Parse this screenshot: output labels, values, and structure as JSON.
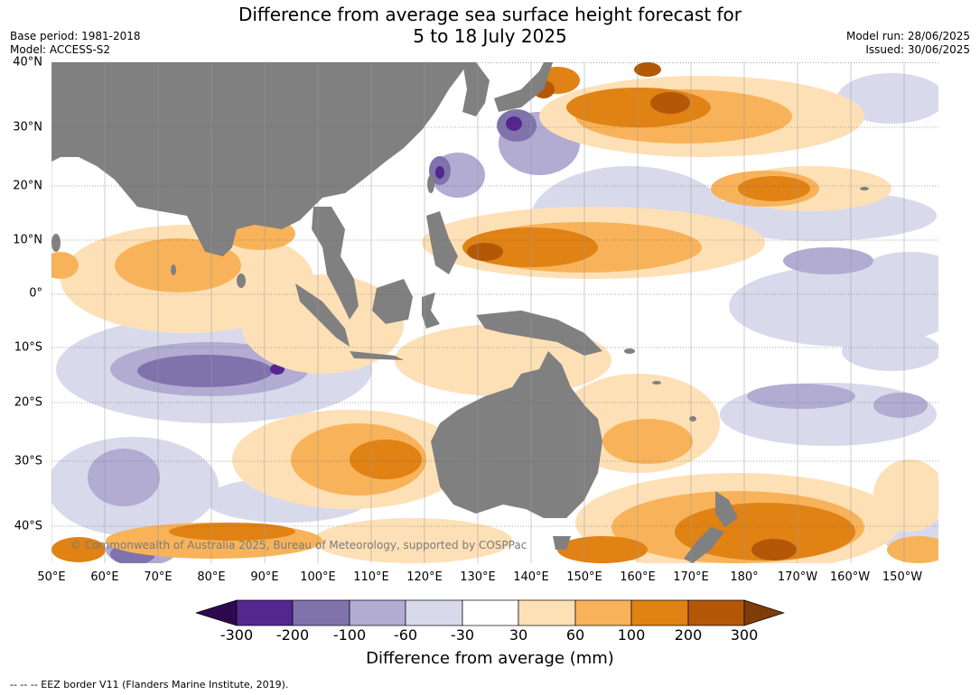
{
  "title": {
    "line1": "Difference from average sea surface height forecast for",
    "line2": "5 to 18 July 2025"
  },
  "meta": {
    "base_period": "Base period: 1981-2018",
    "model": "Model: ACCESS-S2",
    "model_run": "Model run: 28/06/2025",
    "issued": "Issued: 30/06/2025"
  },
  "map": {
    "copyright": "© Commonwealth of Australia 2025, Bureau of Meteorology, supported by COSPPac",
    "lat_labels": [
      "40°N",
      "30°N",
      "20°N",
      "10°N",
      "0°",
      "10°S",
      "20°S",
      "30°S",
      "40°S"
    ],
    "lon_labels": [
      "50°E",
      "60°E",
      "70°E",
      "80°E",
      "90°E",
      "100°E",
      "110°E",
      "120°E",
      "130°E",
      "140°E",
      "150°E",
      "160°E",
      "170°E",
      "180°",
      "170°W",
      "160°W",
      "150°W"
    ],
    "colors": {
      "land": "#808080",
      "neg_extreme": "#2d0a4e",
      "neg_300_200": "#54278f",
      "neg_200_100": "#8073ac",
      "neg_100_60": "#b2abd2",
      "neg_60_30": "#d8daeb",
      "neutral": "#ffffff",
      "pos_30_60": "#fee0b6",
      "pos_60_100": "#f8b35a",
      "pos_100_200": "#e08214",
      "pos_200_300": "#b35806",
      "pos_extreme": "#7f3b08"
    }
  },
  "colorbar": {
    "ticks": [
      "-300",
      "-200",
      "-100",
      "-60",
      "-30",
      "30",
      "60",
      "100",
      "200",
      "300"
    ],
    "label": "Difference from average (mm)"
  },
  "footer": "--  --  -- EEZ border V11 (Flanders Marine Institute, 2019)."
}
